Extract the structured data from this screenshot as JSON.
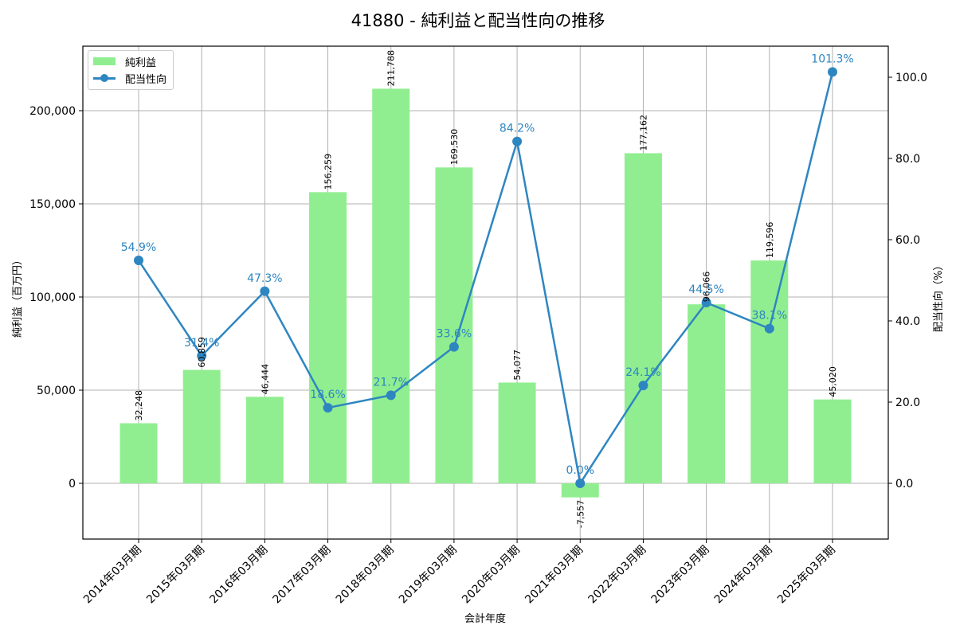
{
  "title": "41880 - 純利益と配当性向の推移",
  "legend": {
    "bar_label": "純利益",
    "line_label": "配当性向"
  },
  "axes": {
    "xlabel": "会計年度",
    "ylabel_left": "純利益（百万円）",
    "ylabel_right": "配当性向（%）",
    "left_ticks": [
      "0",
      "50,000",
      "100,000",
      "150,000",
      "200,000"
    ],
    "right_ticks": [
      "0.0",
      "20.0",
      "40.0",
      "60.0",
      "80.0",
      "100.0"
    ]
  },
  "colors": {
    "bar": "#90ee90",
    "line": "#2e86c1",
    "grid": "#b0b0b0"
  },
  "chart_data": {
    "type": "bar+line",
    "title": "41880 - 純利益と配当性向の推移",
    "xlabel": "会計年度",
    "ylabel": "純利益（百万円）",
    "ylabel_secondary": "配当性向（%）",
    "categories": [
      "2014年03月期",
      "2015年03月期",
      "2016年03月期",
      "2017年03月期",
      "2018年03月期",
      "2019年03月期",
      "2020年03月期",
      "2021年03月期",
      "2022年03月期",
      "2023年03月期",
      "2024年03月期",
      "2025年03月期"
    ],
    "series": [
      {
        "name": "純利益",
        "type": "bar",
        "axis": "left",
        "values": [
          32248,
          60859,
          46444,
          156259,
          211788,
          169530,
          54077,
          -7557,
          177162,
          96066,
          119596,
          45020
        ],
        "labels": [
          "32,248",
          "60,859",
          "46,444",
          "156,259",
          "211,788",
          "169,530",
          "54,077",
          "-7,557",
          "177,162",
          "96,066",
          "119,596",
          "45,020"
        ]
      },
      {
        "name": "配当性向",
        "type": "line",
        "axis": "right",
        "values": [
          54.9,
          31.4,
          47.3,
          18.6,
          21.7,
          33.6,
          84.2,
          0.0,
          24.1,
          44.5,
          38.1,
          101.3
        ],
        "labels": [
          "54.9%",
          "31.4%",
          "47.3%",
          "18.6%",
          "21.7%",
          "33.6%",
          "84.2%",
          "0.0%",
          "24.1%",
          "44.5%",
          "38.1%",
          "101.3%"
        ]
      }
    ],
    "ylim": [
      -30000,
      234000
    ],
    "ylim_secondary": [
      -13.8,
      107.5
    ],
    "grid": true,
    "legend_position": "upper left"
  }
}
